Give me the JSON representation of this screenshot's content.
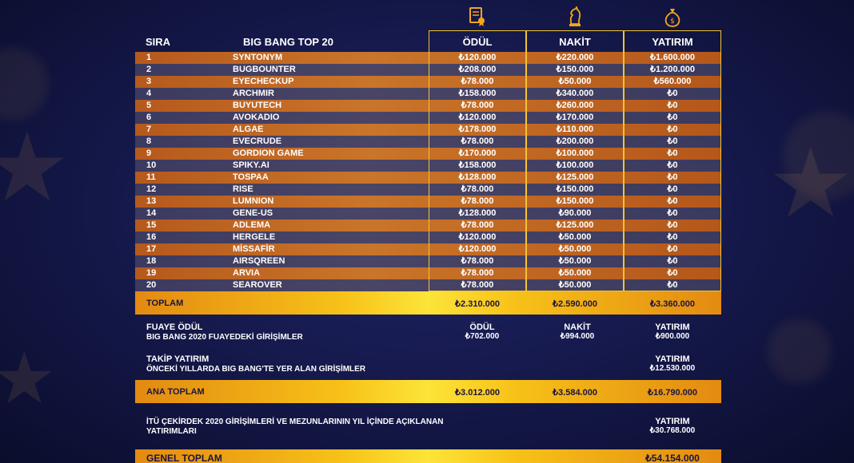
{
  "header": {
    "rank_label": "SIRA",
    "title": "BIG BANG TOP 20",
    "columns": [
      "ÖDÜL",
      "NAKİT",
      "YATIRIM"
    ],
    "column_icons": [
      "certificate-icon",
      "chess-knight-icon",
      "money-bag-icon"
    ]
  },
  "rows": [
    {
      "rank": "1",
      "name": "SYNTONYM",
      "odul": "₺120.000",
      "nakit": "₺220.000",
      "yatirim": "₺1.600.000"
    },
    {
      "rank": "2",
      "name": "BUGBOUNTER",
      "odul": "₺208.000",
      "nakit": "₺150.000",
      "yatirim": "₺1.200.000"
    },
    {
      "rank": "3",
      "name": "EYECHECKUP",
      "odul": "₺78.000",
      "nakit": "₺50.000",
      "yatirim": "₺560.000"
    },
    {
      "rank": "4",
      "name": "ARCHMIR",
      "odul": "₺158.000",
      "nakit": "₺340.000",
      "yatirim": "₺0"
    },
    {
      "rank": "5",
      "name": "BUYUTECH",
      "odul": "₺78.000",
      "nakit": "₺260.000",
      "yatirim": "₺0"
    },
    {
      "rank": "6",
      "name": "AVOKADIO",
      "odul": "₺120.000",
      "nakit": "₺170.000",
      "yatirim": "₺0"
    },
    {
      "rank": "7",
      "name": "ALGAE",
      "odul": "₺178.000",
      "nakit": "₺110.000",
      "yatirim": "₺0"
    },
    {
      "rank": "8",
      "name": "EVECRUDE",
      "odul": "₺78.000",
      "nakit": "₺200.000",
      "yatirim": "₺0"
    },
    {
      "rank": "9",
      "name": "GORDION GAME",
      "odul": "₺170.000",
      "nakit": "₺100.000",
      "yatirim": "₺0"
    },
    {
      "rank": "10",
      "name": "SPIKY.AI",
      "odul": "₺158.000",
      "nakit": "₺100.000",
      "yatirim": "₺0"
    },
    {
      "rank": "11",
      "name": "TOSPAA",
      "odul": "₺128.000",
      "nakit": "₺125.000",
      "yatirim": "₺0"
    },
    {
      "rank": "12",
      "name": "RISE",
      "odul": "₺78.000",
      "nakit": "₺150.000",
      "yatirim": "₺0"
    },
    {
      "rank": "13",
      "name": "LUMNION",
      "odul": "₺78.000",
      "nakit": "₺150.000",
      "yatirim": "₺0"
    },
    {
      "rank": "14",
      "name": "GENE-US",
      "odul": "₺128.000",
      "nakit": "₺90.000",
      "yatirim": "₺0"
    },
    {
      "rank": "15",
      "name": "ADLEMA",
      "odul": "₺78.000",
      "nakit": "₺125.000",
      "yatirim": "₺0"
    },
    {
      "rank": "16",
      "name": "HERGELE",
      "odul": "₺120.000",
      "nakit": "₺50.000",
      "yatirim": "₺0"
    },
    {
      "rank": "17",
      "name": "MİSSAFİR",
      "odul": "₺120.000",
      "nakit": "₺50.000",
      "yatirim": "₺0"
    },
    {
      "rank": "18",
      "name": "AIRSQREEN",
      "odul": "₺78.000",
      "nakit": "₺50.000",
      "yatirim": "₺0"
    },
    {
      "rank": "19",
      "name": "ARVIA",
      "odul": "₺78.000",
      "nakit": "₺50.000",
      "yatirim": "₺0"
    },
    {
      "rank": "20",
      "name": "SEAROVER",
      "odul": "₺78.000",
      "nakit": "₺50.000",
      "yatirim": "₺0"
    }
  ],
  "toplam": {
    "label": "TOPLAM",
    "odul": "₺2.310.000",
    "nakit": "₺2.590.000",
    "yatirim": "₺3.360.000"
  },
  "fuaye": {
    "title": "FUAYE ÖDÜL",
    "subtitle": "BIG BANG 2020 FUAYEDEKİ GİRİŞİMLER",
    "odul_label": "ÖDÜL",
    "odul": "₺702.000",
    "nakit_label": "NAKİT",
    "nakit": "₺994.000",
    "yatirim_label": "YATIRIM",
    "yatirim": "₺900.000"
  },
  "takip": {
    "title": "TAKİP YATIRIM",
    "subtitle": "ÖNCEKİ YILLARDA BIG BANG'TE YER ALAN GİRİŞİMLER",
    "yatirim_label": "YATIRIM",
    "yatirim": "₺12.530.000"
  },
  "ana_toplam": {
    "label": "ANA TOPLAM",
    "odul": "₺3.012.000",
    "nakit": "₺3.584.000",
    "yatirim": "₺16.790.000"
  },
  "itu": {
    "line1": "İTÜ ÇEKİRDEK 2020 GİRİŞİMLERİ VE MEZUNLARININ YIL İÇİNDE AÇIKLANAN",
    "line2": "YATIRIMLARI",
    "yatirim_label": "YATIRIM",
    "yatirim": "₺30.768.000"
  },
  "genel_toplam": {
    "label": "GENEL TOPLAM",
    "yatirim": "₺54.154.000"
  },
  "colors": {
    "gold": "#f3c331",
    "row_orange": "#c9752a",
    "row_slate": "#4a4566",
    "background": "#161a4e"
  }
}
